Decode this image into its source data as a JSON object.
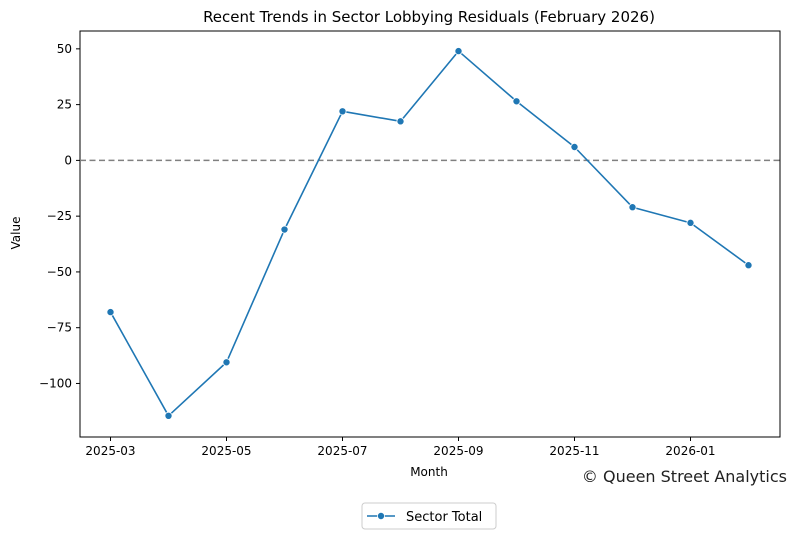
{
  "chart_data": {
    "type": "line",
    "title": "Recent Trends in Sector Lobbying Residuals (February 2026)",
    "xlabel": "Month",
    "ylabel": "Value",
    "x": [
      "2025-03",
      "2025-04",
      "2025-05",
      "2025-06",
      "2025-07",
      "2025-08",
      "2025-09",
      "2025-10",
      "2025-11",
      "2025-12",
      "2026-01",
      "2026-02"
    ],
    "x_ticks": [
      "2025-03",
      "2025-05",
      "2025-07",
      "2025-09",
      "2025-11",
      "2026-01"
    ],
    "y_ticks": [
      50,
      25,
      0,
      -25,
      -50,
      -75,
      -100
    ],
    "y_tick_labels": [
      "50",
      "25",
      "0",
      "−25",
      "−50",
      "−75",
      "−100"
    ],
    "ylim": [
      -124,
      58
    ],
    "grid": false,
    "reference_line": {
      "y": 0,
      "style": "dashed",
      "color": "#808080"
    },
    "series": [
      {
        "name": "Sector Total",
        "color": "#1f77b4",
        "marker": "circle",
        "values": [
          -68,
          -114.5,
          -90.5,
          -31,
          22,
          17.5,
          49,
          26.5,
          6,
          -21,
          -28,
          -47
        ]
      }
    ],
    "legend": {
      "position": "bottom-center",
      "entries": [
        "Sector Total"
      ]
    },
    "watermark": "© Queen Street Analytics"
  }
}
